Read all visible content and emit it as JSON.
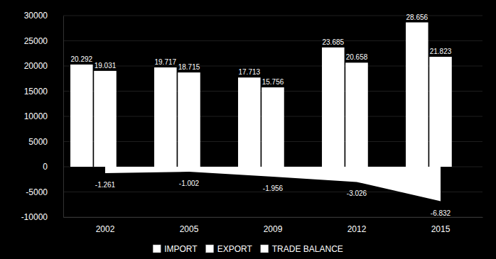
{
  "chart_data": {
    "type": "bar",
    "categories": [
      "2002",
      "2005",
      "2009",
      "2012",
      "2015"
    ],
    "series": [
      {
        "name": "IMPORT",
        "type": "bar",
        "color": "#ffffff",
        "values": [
          20292,
          19717,
          17713,
          23685,
          28656
        ],
        "value_labels": [
          "20.292",
          "19.717",
          "17.713",
          "23.685",
          "28.656"
        ]
      },
      {
        "name": "EXPORT",
        "type": "bar",
        "color": "#ffffff",
        "values": [
          19031,
          18715,
          15756,
          20658,
          21823
        ],
        "value_labels": [
          "19.031",
          "18.715",
          "15.756",
          "20.658",
          "21.823"
        ]
      },
      {
        "name": "TRADE BALANCE",
        "type": "area",
        "color": "#ffffff",
        "values": [
          -1261,
          -1002,
          -1956,
          -3026,
          -6832
        ],
        "value_labels": [
          "-1.261",
          "-1.002",
          "-1.956",
          "-3.026",
          "-6.832"
        ]
      }
    ],
    "ylim": [
      -10000,
      30000
    ],
    "yticks": [
      -10000,
      -5000,
      0,
      5000,
      10000,
      15000,
      20000,
      25000,
      30000
    ],
    "grid": true,
    "legend": "bottom",
    "data_labels": true
  }
}
